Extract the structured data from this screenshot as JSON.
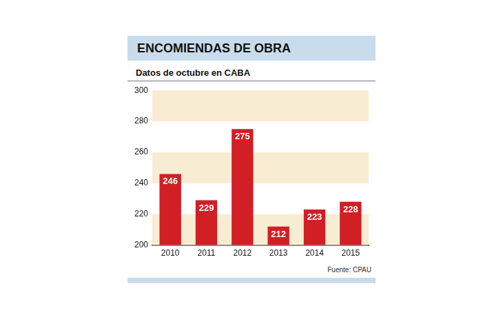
{
  "chart_data": {
    "type": "bar",
    "title": "ENCOMIENDAS DE OBRA",
    "subtitle": "Datos de octubre en CABA",
    "source": "Fuente: CPAU",
    "categories": [
      "2010",
      "2011",
      "2012",
      "2013",
      "2014",
      "2015"
    ],
    "values": [
      246,
      229,
      275,
      212,
      223,
      228
    ],
    "color": "#d21f26",
    "ylim": [
      200,
      300
    ],
    "yticks": [
      200,
      220,
      240,
      260,
      280,
      300
    ],
    "grid": true,
    "data_labels": true
  }
}
